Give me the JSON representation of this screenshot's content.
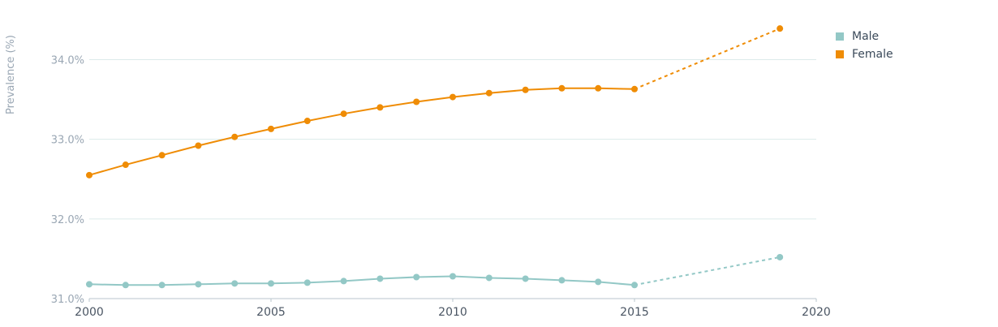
{
  "chart_data": {
    "type": "line",
    "ylabel": "Prevalence (%)",
    "xlabel": "",
    "xlim": [
      2000,
      2020
    ],
    "ylim": [
      31.0,
      34.3
    ],
    "x_ticks": [
      2000,
      2005,
      2010,
      2015,
      2020
    ],
    "x_tick_labels": [
      "2000",
      "2005",
      "2010",
      "2015",
      "2020"
    ],
    "y_ticks": [
      31.0,
      32.0,
      33.0,
      34.0
    ],
    "y_tick_labels": [
      "31.0%",
      "32.0%",
      "33.0%",
      "34.0%"
    ],
    "grid": "horizontal",
    "legend_position": "top-right",
    "series": [
      {
        "name": "Male",
        "color": "#93c8c6",
        "x": [
          2000,
          2001,
          2002,
          2003,
          2004,
          2005,
          2006,
          2007,
          2008,
          2009,
          2010,
          2011,
          2012,
          2013,
          2014,
          2015
        ],
        "values": [
          31.18,
          31.17,
          31.17,
          31.18,
          31.19,
          31.19,
          31.2,
          31.22,
          31.25,
          31.27,
          31.28,
          31.26,
          31.25,
          31.23,
          31.21,
          31.17
        ],
        "projection": {
          "x": [
            2015,
            2019
          ],
          "values": [
            31.17,
            31.52
          ]
        }
      },
      {
        "name": "Female",
        "color": "#ef8c05",
        "x": [
          2000,
          2001,
          2002,
          2003,
          2004,
          2005,
          2006,
          2007,
          2008,
          2009,
          2010,
          2011,
          2012,
          2013,
          2014,
          2015
        ],
        "values": [
          32.55,
          32.68,
          32.8,
          32.92,
          33.03,
          33.13,
          33.23,
          33.32,
          33.4,
          33.47,
          33.53,
          33.58,
          33.62,
          33.64,
          33.64,
          33.63
        ],
        "projection": {
          "x": [
            2015,
            2019
          ],
          "values": [
            33.63,
            34.39
          ]
        }
      }
    ]
  }
}
